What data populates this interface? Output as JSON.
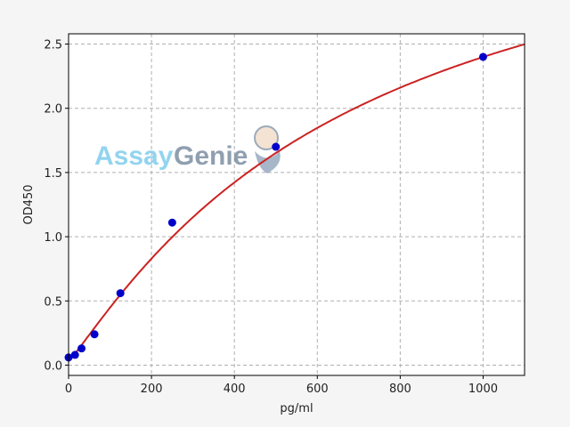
{
  "chart_data": {
    "type": "scatter",
    "title": "",
    "xlabel": "pg/ml",
    "ylabel": "OD450",
    "xlim": [
      0,
      1100
    ],
    "ylim": [
      -0.08,
      2.58
    ],
    "xticks": [
      0,
      200,
      400,
      600,
      800,
      1000
    ],
    "yticks": [
      0.0,
      0.5,
      1.0,
      1.5,
      2.0,
      2.5
    ],
    "xtick_labels": [
      "0",
      "200",
      "400",
      "600",
      "800",
      "1000"
    ],
    "ytick_labels": [
      "0.0",
      "0.5",
      "1.0",
      "1.5",
      "2.0",
      "2.5"
    ],
    "grid": true,
    "points": {
      "x": [
        0,
        15.6,
        31.25,
        62.5,
        125,
        250,
        500,
        1000
      ],
      "y": [
        0.06,
        0.08,
        0.13,
        0.24,
        0.56,
        1.11,
        1.7,
        2.4
      ],
      "color": "#0000cc"
    },
    "fit_curve": {
      "model": "4PL",
      "a": 0.03,
      "b": 1.1,
      "c": 700,
      "d": 4.0,
      "color": "#cc2222"
    },
    "watermark": "AssayGenie"
  }
}
